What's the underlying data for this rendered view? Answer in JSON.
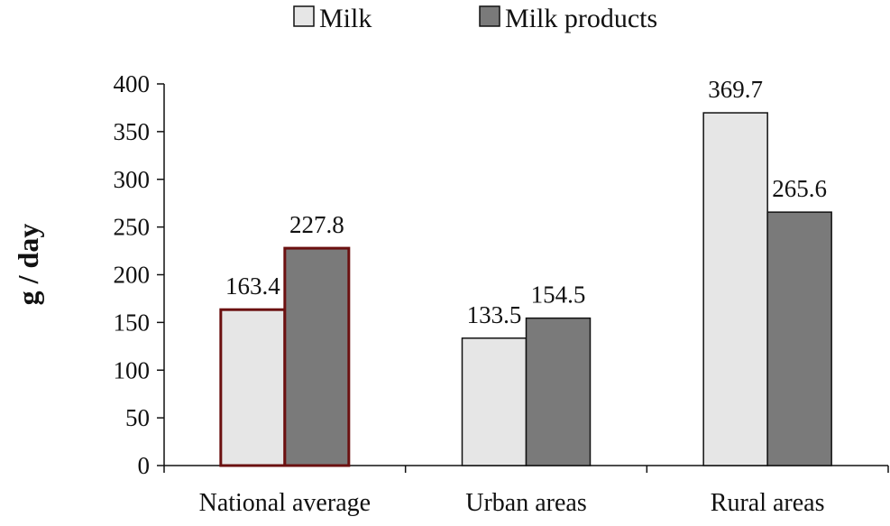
{
  "chart_data": {
    "type": "bar",
    "title": "",
    "xlabel": "",
    "ylabel": "g / day",
    "ylim": [
      0,
      400
    ],
    "yticks": [
      0,
      50,
      100,
      150,
      200,
      250,
      300,
      350,
      400
    ],
    "categories": [
      "National average",
      "Urban areas",
      "Rural areas"
    ],
    "series": [
      {
        "name": "Milk",
        "values": [
          163.4,
          133.5,
          369.7
        ],
        "labels": [
          "163.4",
          "133.5",
          "369.7"
        ],
        "color": "#e6e6e6"
      },
      {
        "name": "Milk products",
        "values": [
          227.8,
          154.5,
          265.6
        ],
        "labels": [
          "227.8",
          "154.5",
          "265.6"
        ],
        "color": "#7a7a7a"
      }
    ],
    "highlight_category": "National average",
    "highlight_color": "#6b1010",
    "legend_position": "top-center",
    "grid": false
  }
}
